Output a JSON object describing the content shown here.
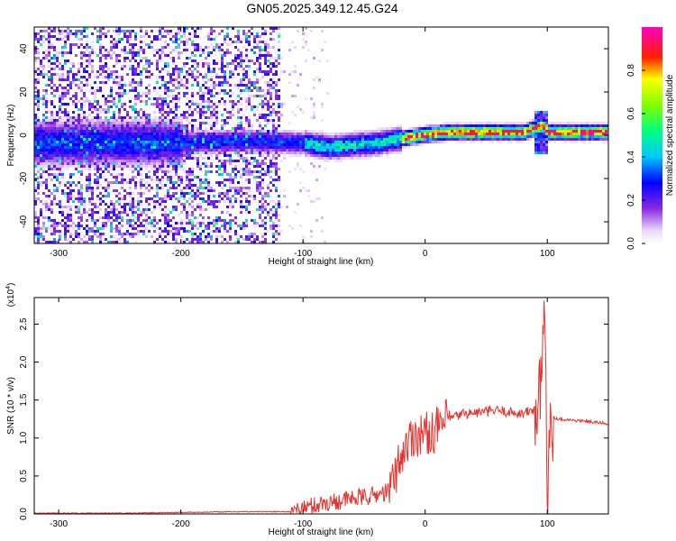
{
  "title": "GN05.2025.349.12.45.G24",
  "chart_data": [
    {
      "type": "heatmap",
      "xlabel": "Height of straight line (km)",
      "ylabel": "Frequency (Hz)",
      "xlim": [
        -320,
        150
      ],
      "ylim": [
        -50,
        50
      ],
      "xticks": [
        -300,
        -200,
        -100,
        0,
        100
      ],
      "yticks": [
        -40,
        -20,
        0,
        20,
        40
      ],
      "colorbar": {
        "label": "Normalized spectral amplitude",
        "range": [
          0.0,
          1.0
        ],
        "ticks": [
          "0.0",
          "0.2",
          "0.4",
          "0.6",
          "0.8"
        ],
        "colormap": "rainbow (white-violet-blue-cyan-green-yellow-red-magenta)"
      },
      "ridge": {
        "description": "Dominant frequency ridge near 0 Hz; strongest (red) from about -15 km to 150 km, with a spike near 95 km",
        "x": [
          -200,
          -150,
          -100,
          -80,
          -60,
          -40,
          -20,
          0,
          20,
          50,
          80,
          95,
          100,
          120,
          150
        ],
        "frequency_hz": [
          -3,
          -2,
          -3,
          -5,
          -4,
          -3,
          -1,
          1,
          2,
          2,
          2,
          5,
          2,
          2,
          2
        ]
      }
    },
    {
      "type": "line",
      "xlabel": "Height of straight line (km)",
      "ylabel": "SNR (10 * v/v)",
      "y_scale_label": "(x10",
      "y_scale_exponent": "4",
      "xlim": [
        -320,
        150
      ],
      "ylim": [
        0,
        2.85
      ],
      "xticks": [
        -300,
        -200,
        -100,
        0,
        100
      ],
      "yticks": [
        "0.0",
        "0.5",
        "1.0",
        "1.5",
        "2.0",
        "2.5"
      ],
      "series": [
        {
          "color": "#e8322d",
          "x": [
            -320,
            -250,
            -200,
            -150,
            -110,
            -100,
            -80,
            -60,
            -40,
            -30,
            -25,
            -20,
            -10,
            0,
            10,
            20,
            30,
            40,
            50,
            60,
            70,
            80,
            90,
            95,
            98,
            100,
            102,
            105,
            110,
            130,
            150
          ],
          "y": [
            0.01,
            0.01,
            0.02,
            0.03,
            0.03,
            0.08,
            0.15,
            0.2,
            0.25,
            0.3,
            0.5,
            0.75,
            1.05,
            1.05,
            1.12,
            1.25,
            1.32,
            1.33,
            1.35,
            1.36,
            1.34,
            1.32,
            1.38,
            1.55,
            2.8,
            0.1,
            1.4,
            1.27,
            1.25,
            1.22,
            1.19
          ]
        }
      ]
    }
  ]
}
